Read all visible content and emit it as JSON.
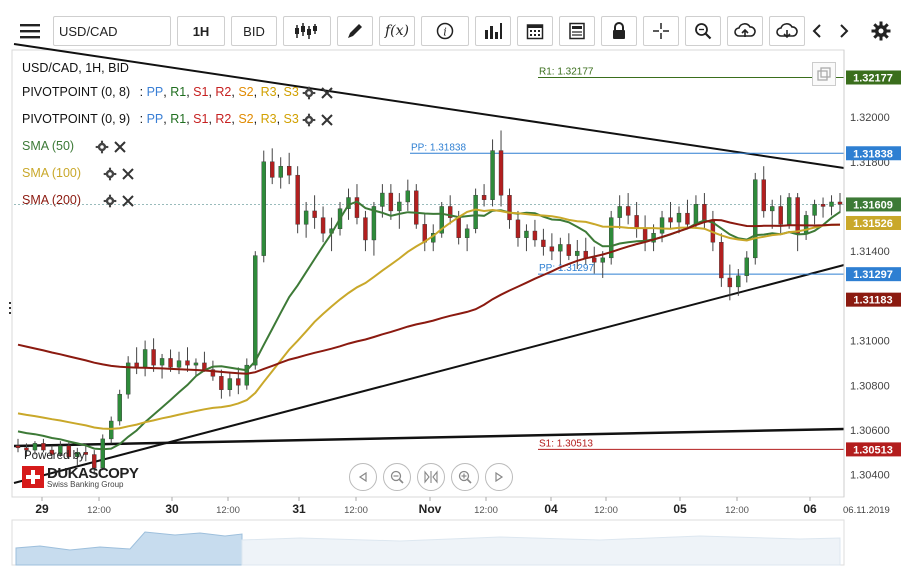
{
  "toolbar": {
    "symbol": "USD/CAD",
    "timeframe": "1H",
    "price_side": "BID"
  },
  "legend": {
    "title": "USD/CAD, 1H, BID",
    "pivot1": {
      "label": "PIVOTPOINT (0, 8)",
      "levels": [
        "PP",
        "R1",
        "S1",
        "R2",
        "S2",
        "R3",
        "S3"
      ]
    },
    "pivot2": {
      "label": "PIVOTPOINT (0, 9)",
      "levels": [
        "PP",
        "R1",
        "S1",
        "R2",
        "S2",
        "R3",
        "S3"
      ]
    },
    "sma50": {
      "label": "SMA (50)",
      "color": "#3d7a37"
    },
    "sma100": {
      "label": "SMA (100)",
      "color": "#c9a82a"
    },
    "sma200": {
      "label": "SMA (200)",
      "color": "#8b1a10"
    },
    "level_colors": {
      "PP": "#3a7fd5",
      "R1": "#1f6e1f",
      "S1": "#c62020",
      "R2": "#c62020",
      "S2": "#e08a00",
      "R3": "#d1a000",
      "S3": "#d1a000"
    }
  },
  "branding": {
    "powered_by": "Powered by",
    "logo": "DUKASCOPY",
    "tagline": "Swiss Banking Group"
  },
  "chart_data": {
    "type": "candlestick",
    "y_ticks": [
      "1.32000",
      "1.31800",
      "1.31400",
      "1.31000",
      "1.30800",
      "1.30600",
      "1.30400"
    ],
    "ylim": [
      1.303,
      1.323
    ],
    "x_ticks": [
      "29",
      "12:00",
      "30",
      "12:00",
      "31",
      "12:00",
      "Nov",
      "12:00",
      "04",
      "12:00",
      "05",
      "12:00",
      "06"
    ],
    "date_label": "06.11.2019",
    "current_price": "1.31609",
    "price_labels": [
      {
        "text": "1.32177",
        "value": 1.32177,
        "color": "#3a6e1c"
      },
      {
        "text": "1.31838",
        "value": 1.31838,
        "color": "#2e7fd2"
      },
      {
        "text": "1.31609",
        "value": 1.31609,
        "color": "#3d7a37"
      },
      {
        "text": "1.31526",
        "value": 1.31526,
        "color": "#c9a82a"
      },
      {
        "text": "1.31297",
        "value": 1.31297,
        "color": "#2e7fd2"
      },
      {
        "text": "1.31183",
        "value": 1.31183,
        "color": "#8b1a10"
      },
      {
        "text": "1.30513",
        "value": 1.30513,
        "color": "#b31d1d"
      }
    ],
    "pivot_annotations": [
      {
        "text": "R1: 1.32177",
        "value": 1.32177,
        "color": "#3a6e1c"
      },
      {
        "text": "PP: 1.31838",
        "value": 1.31838,
        "color": "#2e7fd2"
      },
      {
        "text": "PP: 1.31297",
        "value": 1.31297,
        "color": "#2e7fd2"
      },
      {
        "text": "S1: 1.30513",
        "value": 1.30513,
        "color": "#b31d1d"
      }
    ],
    "candles": [
      [
        1.3053,
        1.3056,
        1.305,
        1.3052
      ],
      [
        1.3052,
        1.3054,
        1.3048,
        1.3051
      ],
      [
        1.3051,
        1.3055,
        1.3049,
        1.3054
      ],
      [
        1.3054,
        1.3056,
        1.305,
        1.3051
      ],
      [
        1.3051,
        1.3053,
        1.3047,
        1.3049
      ],
      [
        1.3049,
        1.3055,
        1.3048,
        1.3053
      ],
      [
        1.3053,
        1.3055,
        1.3047,
        1.3048
      ],
      [
        1.3048,
        1.3052,
        1.3044,
        1.305
      ],
      [
        1.305,
        1.3054,
        1.3046,
        1.3049
      ],
      [
        1.3049,
        1.3051,
        1.304,
        1.3043
      ],
      [
        1.3043,
        1.3058,
        1.3042,
        1.3056
      ],
      [
        1.3056,
        1.3066,
        1.3054,
        1.3064
      ],
      [
        1.3064,
        1.3078,
        1.3062,
        1.3076
      ],
      [
        1.3076,
        1.3093,
        1.3074,
        1.309
      ],
      [
        1.309,
        1.3097,
        1.3085,
        1.3088
      ],
      [
        1.3088,
        1.31,
        1.3084,
        1.3096
      ],
      [
        1.3096,
        1.3101,
        1.3086,
        1.3089
      ],
      [
        1.3089,
        1.3094,
        1.3083,
        1.3092
      ],
      [
        1.3092,
        1.3096,
        1.3086,
        1.3088
      ],
      [
        1.3088,
        1.3095,
        1.3085,
        1.3091
      ],
      [
        1.3091,
        1.3097,
        1.3086,
        1.3089
      ],
      [
        1.3089,
        1.3092,
        1.3084,
        1.309
      ],
      [
        1.309,
        1.3095,
        1.3086,
        1.3087
      ],
      [
        1.3087,
        1.3091,
        1.3082,
        1.3084
      ],
      [
        1.3084,
        1.3087,
        1.3074,
        1.3078
      ],
      [
        1.3078,
        1.3086,
        1.3075,
        1.3083
      ],
      [
        1.3083,
        1.3088,
        1.3076,
        1.308
      ],
      [
        1.308,
        1.3092,
        1.3078,
        1.3089
      ],
      [
        1.3089,
        1.314,
        1.3087,
        1.3138
      ],
      [
        1.3138,
        1.3185,
        1.3135,
        1.318
      ],
      [
        1.318,
        1.3186,
        1.317,
        1.3173
      ],
      [
        1.3173,
        1.3182,
        1.3168,
        1.3178
      ],
      [
        1.3178,
        1.3184,
        1.317,
        1.3174
      ],
      [
        1.3174,
        1.3178,
        1.3148,
        1.3152
      ],
      [
        1.3152,
        1.3162,
        1.3146,
        1.3158
      ],
      [
        1.3158,
        1.3165,
        1.315,
        1.3155
      ],
      [
        1.3155,
        1.316,
        1.3144,
        1.3148
      ],
      [
        1.3148,
        1.3155,
        1.314,
        1.315
      ],
      [
        1.315,
        1.3162,
        1.3147,
        1.3159
      ],
      [
        1.3159,
        1.3168,
        1.3154,
        1.3164
      ],
      [
        1.3164,
        1.317,
        1.3152,
        1.3155
      ],
      [
        1.3155,
        1.3158,
        1.314,
        1.3145
      ],
      [
        1.3145,
        1.3162,
        1.3138,
        1.316
      ],
      [
        1.316,
        1.317,
        1.3155,
        1.3166
      ],
      [
        1.3166,
        1.317,
        1.3154,
        1.3158
      ],
      [
        1.3158,
        1.3166,
        1.315,
        1.3162
      ],
      [
        1.3162,
        1.3172,
        1.3158,
        1.3167
      ],
      [
        1.3167,
        1.317,
        1.315,
        1.3152
      ],
      [
        1.3152,
        1.3157,
        1.314,
        1.3144
      ],
      [
        1.3144,
        1.3152,
        1.314,
        1.3148
      ],
      [
        1.3148,
        1.3162,
        1.3146,
        1.316
      ],
      [
        1.316,
        1.3165,
        1.3152,
        1.3155
      ],
      [
        1.3155,
        1.3158,
        1.3143,
        1.3146
      ],
      [
        1.3146,
        1.3152,
        1.314,
        1.315
      ],
      [
        1.315,
        1.3168,
        1.3148,
        1.3165
      ],
      [
        1.3165,
        1.317,
        1.316,
        1.3163
      ],
      [
        1.3163,
        1.319,
        1.316,
        1.3185
      ],
      [
        1.3185,
        1.3194,
        1.316,
        1.3165
      ],
      [
        1.3165,
        1.3168,
        1.315,
        1.3154
      ],
      [
        1.3154,
        1.3158,
        1.3142,
        1.3146
      ],
      [
        1.3146,
        1.3152,
        1.314,
        1.3149
      ],
      [
        1.3149,
        1.3154,
        1.3142,
        1.3145
      ],
      [
        1.3145,
        1.315,
        1.3138,
        1.3142
      ],
      [
        1.3142,
        1.3148,
        1.3136,
        1.314
      ],
      [
        1.314,
        1.3146,
        1.3134,
        1.3143
      ],
      [
        1.3143,
        1.3148,
        1.3136,
        1.3138
      ],
      [
        1.3138,
        1.3145,
        1.3132,
        1.314
      ],
      [
        1.314,
        1.3146,
        1.3134,
        1.3137
      ],
      [
        1.3137,
        1.3142,
        1.313,
        1.3135
      ],
      [
        1.3135,
        1.314,
        1.3128,
        1.3137
      ],
      [
        1.3137,
        1.3158,
        1.3134,
        1.3155
      ],
      [
        1.3155,
        1.3165,
        1.315,
        1.316
      ],
      [
        1.316,
        1.3166,
        1.3152,
        1.3156
      ],
      [
        1.3156,
        1.3162,
        1.3146,
        1.315
      ],
      [
        1.315,
        1.3156,
        1.314,
        1.3144
      ],
      [
        1.3144,
        1.3152,
        1.314,
        1.3148
      ],
      [
        1.3148,
        1.3158,
        1.3144,
        1.3155
      ],
      [
        1.3155,
        1.3162,
        1.315,
        1.3153
      ],
      [
        1.3153,
        1.316,
        1.3148,
        1.3157
      ],
      [
        1.3157,
        1.3163,
        1.315,
        1.3152
      ],
      [
        1.3152,
        1.3165,
        1.315,
        1.3161
      ],
      [
        1.3161,
        1.3166,
        1.315,
        1.3154
      ],
      [
        1.3154,
        1.3158,
        1.314,
        1.3144
      ],
      [
        1.3144,
        1.3148,
        1.3124,
        1.3128
      ],
      [
        1.3128,
        1.3134,
        1.3118,
        1.3124
      ],
      [
        1.3124,
        1.3132,
        1.312,
        1.3129
      ],
      [
        1.3129,
        1.314,
        1.3126,
        1.3137
      ],
      [
        1.3137,
        1.3175,
        1.3134,
        1.3172
      ],
      [
        1.3172,
        1.3178,
        1.3155,
        1.3158
      ],
      [
        1.3158,
        1.3163,
        1.315,
        1.316
      ],
      [
        1.316,
        1.3165,
        1.3148,
        1.3152
      ],
      [
        1.3152,
        1.3166,
        1.315,
        1.3164
      ],
      [
        1.3164,
        1.3166,
        1.314,
        1.3148
      ],
      [
        1.3148,
        1.3158,
        1.3145,
        1.3156
      ],
      [
        1.3156,
        1.3163,
        1.3152,
        1.3161
      ],
      [
        1.3161,
        1.3164,
        1.3155,
        1.316
      ],
      [
        1.316,
        1.3165,
        1.3156,
        1.3162
      ],
      [
        1.3162,
        1.3166,
        1.3157,
        1.3161
      ]
    ]
  }
}
